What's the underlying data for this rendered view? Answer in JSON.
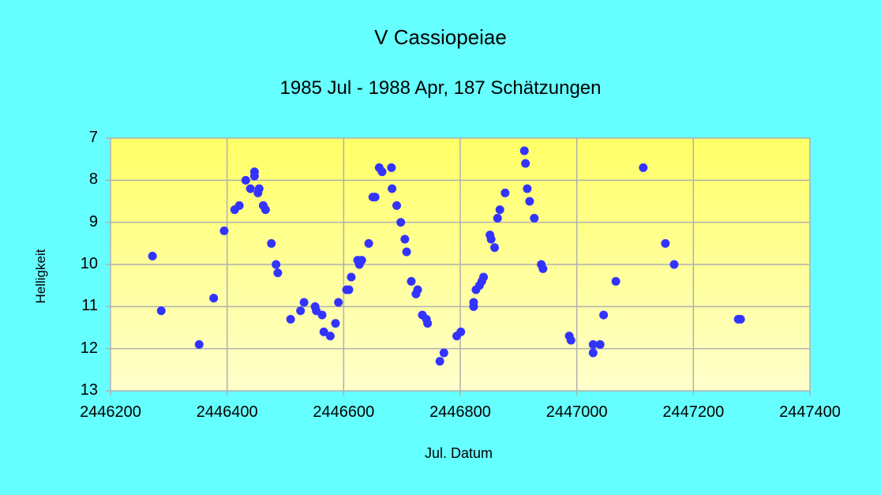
{
  "chart_data": {
    "type": "scatter",
    "title": "V Cassiopeiae",
    "subtitle": "1985 Jul - 1988 Apr, 187 Schätzungen",
    "xlabel": "Jul. Datum",
    "ylabel": "Helligkeit",
    "xlim": [
      2446200,
      2447400
    ],
    "ylim": [
      13,
      7
    ],
    "y_inverted": true,
    "xticks": [
      "2446200",
      "2446400",
      "2446600",
      "2446800",
      "2447000",
      "2447200",
      "2447400"
    ],
    "yticks": [
      "7",
      "8",
      "9",
      "10",
      "11",
      "12",
      "13"
    ],
    "grid": true,
    "legend": null,
    "colors": {
      "background": "#66FFFF",
      "plot_top": "#FFFF66",
      "plot_bottom": "#FFFFCC",
      "marker": "#3333FF",
      "grid": "#B0B0B0"
    },
    "series": [
      {
        "name": "V Cas",
        "points": [
          [
            2446272,
            9.8
          ],
          [
            2446287,
            11.1
          ],
          [
            2446352,
            11.9
          ],
          [
            2446377,
            10.8
          ],
          [
            2446395,
            9.2
          ],
          [
            2446413,
            8.7
          ],
          [
            2446421,
            8.6
          ],
          [
            2446432,
            8.0
          ],
          [
            2446440,
            8.2
          ],
          [
            2446447,
            7.8
          ],
          [
            2446447,
            7.9
          ],
          [
            2446453,
            8.3
          ],
          [
            2446455,
            8.2
          ],
          [
            2446462,
            8.6
          ],
          [
            2446466,
            8.7
          ],
          [
            2446476,
            9.5
          ],
          [
            2446484,
            10.0
          ],
          [
            2446487,
            10.2
          ],
          [
            2446509,
            11.3
          ],
          [
            2446526,
            11.1
          ],
          [
            2446532,
            10.9
          ],
          [
            2446551,
            11.0
          ],
          [
            2446553,
            11.1
          ],
          [
            2446563,
            11.2
          ],
          [
            2446566,
            11.6
          ],
          [
            2446577,
            11.7
          ],
          [
            2446586,
            11.4
          ],
          [
            2446591,
            10.9
          ],
          [
            2446605,
            10.6
          ],
          [
            2446609,
            10.6
          ],
          [
            2446613,
            10.3
          ],
          [
            2446624,
            9.9
          ],
          [
            2446627,
            10.0
          ],
          [
            2446631,
            9.9
          ],
          [
            2446643,
            9.5
          ],
          [
            2446650,
            8.4
          ],
          [
            2446654,
            8.4
          ],
          [
            2446661,
            7.7
          ],
          [
            2446666,
            7.8
          ],
          [
            2446682,
            7.7
          ],
          [
            2446683,
            8.2
          ],
          [
            2446691,
            8.6
          ],
          [
            2446698,
            9.0
          ],
          [
            2446705,
            9.4
          ],
          [
            2446708,
            9.7
          ],
          [
            2446716,
            10.4
          ],
          [
            2446724,
            10.7
          ],
          [
            2446727,
            10.6
          ],
          [
            2446735,
            11.2
          ],
          [
            2446742,
            11.3
          ],
          [
            2446744,
            11.4
          ],
          [
            2446765,
            12.3
          ],
          [
            2446772,
            12.1
          ],
          [
            2446794,
            11.7
          ],
          [
            2446801,
            11.6
          ],
          [
            2446823,
            11.0
          ],
          [
            2446823,
            10.9
          ],
          [
            2446827,
            10.6
          ],
          [
            2446833,
            10.5
          ],
          [
            2446837,
            10.4
          ],
          [
            2446840,
            10.3
          ],
          [
            2446851,
            9.3
          ],
          [
            2446853,
            9.4
          ],
          [
            2446859,
            9.6
          ],
          [
            2446864,
            8.9
          ],
          [
            2446868,
            8.7
          ],
          [
            2446877,
            8.3
          ],
          [
            2446910,
            7.3
          ],
          [
            2446912,
            7.6
          ],
          [
            2446915,
            8.2
          ],
          [
            2446919,
            8.5
          ],
          [
            2446927,
            8.9
          ],
          [
            2446939,
            10.0
          ],
          [
            2446942,
            10.1
          ],
          [
            2446987,
            11.7
          ],
          [
            2446990,
            11.8
          ],
          [
            2447028,
            11.9
          ],
          [
            2447040,
            11.9
          ],
          [
            2447028,
            12.1
          ],
          [
            2447046,
            11.2
          ],
          [
            2447067,
            10.4
          ],
          [
            2447114,
            7.7
          ],
          [
            2447152,
            9.5
          ],
          [
            2447167,
            10.0
          ],
          [
            2447277,
            11.3
          ],
          [
            2447281,
            11.3
          ]
        ]
      }
    ]
  }
}
